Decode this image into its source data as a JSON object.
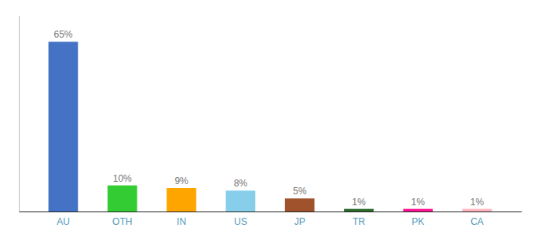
{
  "chart_data": {
    "type": "bar",
    "categories": [
      "AU",
      "OTH",
      "IN",
      "US",
      "JP",
      "TR",
      "PK",
      "CA"
    ],
    "values": [
      65,
      10,
      9,
      8,
      5,
      1,
      1,
      1
    ],
    "value_labels": [
      "65%",
      "10%",
      "9%",
      "8%",
      "5%",
      "1%",
      "1%",
      "1%"
    ],
    "colors": [
      "#4472C4",
      "#33CC33",
      "#FFA500",
      "#87CEEB",
      "#A0522D",
      "#2D6B2D",
      "#FF1493",
      "#FFB6C1"
    ],
    "ylim": [
      0,
      75
    ],
    "data_labels": true,
    "tick_labels": "x"
  }
}
